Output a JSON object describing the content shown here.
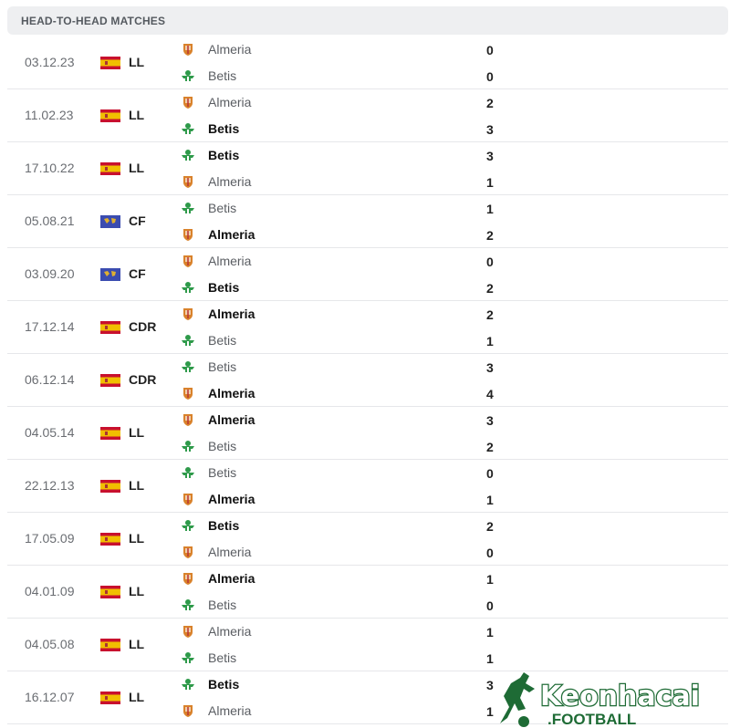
{
  "header": {
    "title": "HEAD-TO-HEAD MATCHES"
  },
  "colors": {
    "almeria": "#d9822b",
    "betis": "#2e9a4a",
    "spain_red": "#c8102e",
    "spain_yellow": "#f1bf00",
    "world_blue": "#3b4cb0"
  },
  "matches": [
    {
      "date": "03.12.23",
      "comp": "LL",
      "flag": "spain-flag",
      "home": "Almeria",
      "away": "Betis",
      "home_score": "0",
      "away_score": "0",
      "winner": ""
    },
    {
      "date": "11.02.23",
      "comp": "LL",
      "flag": "spain-flag",
      "home": "Almeria",
      "away": "Betis",
      "home_score": "2",
      "away_score": "3",
      "winner": "away"
    },
    {
      "date": "17.10.22",
      "comp": "LL",
      "flag": "spain-flag",
      "home": "Betis",
      "away": "Almeria",
      "home_score": "3",
      "away_score": "1",
      "winner": "home"
    },
    {
      "date": "05.08.21",
      "comp": "CF",
      "flag": "world-flag",
      "home": "Betis",
      "away": "Almeria",
      "home_score": "1",
      "away_score": "2",
      "winner": "away"
    },
    {
      "date": "03.09.20",
      "comp": "CF",
      "flag": "world-flag",
      "home": "Almeria",
      "away": "Betis",
      "home_score": "0",
      "away_score": "2",
      "winner": "away"
    },
    {
      "date": "17.12.14",
      "comp": "CDR",
      "flag": "spain-flag",
      "home": "Almeria",
      "away": "Betis",
      "home_score": "2",
      "away_score": "1",
      "winner": "home"
    },
    {
      "date": "06.12.14",
      "comp": "CDR",
      "flag": "spain-flag",
      "home": "Betis",
      "away": "Almeria",
      "home_score": "3",
      "away_score": "4",
      "winner": "away"
    },
    {
      "date": "04.05.14",
      "comp": "LL",
      "flag": "spain-flag",
      "home": "Almeria",
      "away": "Betis",
      "home_score": "3",
      "away_score": "2",
      "winner": "home"
    },
    {
      "date": "22.12.13",
      "comp": "LL",
      "flag": "spain-flag",
      "home": "Betis",
      "away": "Almeria",
      "home_score": "0",
      "away_score": "1",
      "winner": "away"
    },
    {
      "date": "17.05.09",
      "comp": "LL",
      "flag": "spain-flag",
      "home": "Betis",
      "away": "Almeria",
      "home_score": "2",
      "away_score": "0",
      "winner": "home"
    },
    {
      "date": "04.01.09",
      "comp": "LL",
      "flag": "spain-flag",
      "home": "Almeria",
      "away": "Betis",
      "home_score": "1",
      "away_score": "0",
      "winner": "home"
    },
    {
      "date": "04.05.08",
      "comp": "LL",
      "flag": "spain-flag",
      "home": "Almeria",
      "away": "Betis",
      "home_score": "1",
      "away_score": "1",
      "winner": ""
    },
    {
      "date": "16.12.07",
      "comp": "LL",
      "flag": "spain-flag",
      "home": "Betis",
      "away": "Almeria",
      "home_score": "3",
      "away_score": "1",
      "winner": "home"
    }
  ],
  "watermark": {
    "brand": "Keonhacai",
    "suffix": ".FOOTBALL"
  }
}
